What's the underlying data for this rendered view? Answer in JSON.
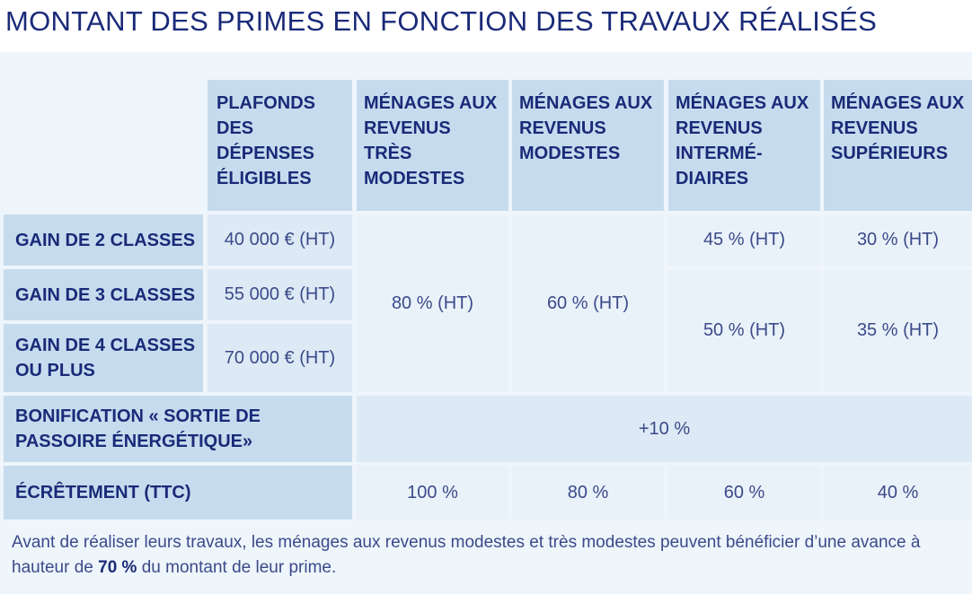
{
  "title": "MONTANT DES PRIMES EN FONCTION DES TRAVAUX RÉALISÉS",
  "headers": {
    "plafonds": "PLAFONDS DES DÉPENSES ÉLIGIBLES",
    "tres_modestes": "MÉNAGES AUX REVENUS TRÈS MODESTES",
    "modestes": "MÉNAGES AUX REVENUS MODESTES",
    "intermediaires": "MÉNAGES AUX REVENUS INTERMÉ-DIAIRES",
    "superieurs": "MÉNAGES AUX REVENUS SUPÉRIEURS"
  },
  "rows": {
    "gain2": {
      "label": "GAIN DE 2 CLASSES",
      "plafond": "40 000 € (HT)"
    },
    "gain3": {
      "label": "GAIN DE 3 CLASSES",
      "plafond": "55 000 € (HT)"
    },
    "gain4": {
      "label": "GAIN DE 4 CLASSES OU PLUS",
      "plafond": "70 000 € (HT)"
    },
    "bonification": {
      "label": "BONIFICATION « SORTIE DE PASSOIRE ÉNERGÉTIQUE»",
      "value": "+10 %"
    },
    "ecretement": {
      "label": "ÉCRÊTEMENT (TTC)",
      "values": [
        "100 %",
        "80 %",
        "60 %",
        "40 %"
      ]
    }
  },
  "rates": {
    "tres_modestes": "80 % (HT)",
    "modestes": "60 % (HT)",
    "intermediaires_gain2": "45 % (HT)",
    "superieurs_gain2": "30 % (HT)",
    "intermediaires_gain34": "50 % (HT)",
    "superieurs_gain34": "35 % (HT)"
  },
  "note": {
    "text_before": "Avant de réaliser leurs travaux, les ménages aux revenus modestes et très modestes peuvent bénéficier d’une avance à hauteur de ",
    "highlight": "70 %",
    "text_after": " du montant de leur prime."
  }
}
